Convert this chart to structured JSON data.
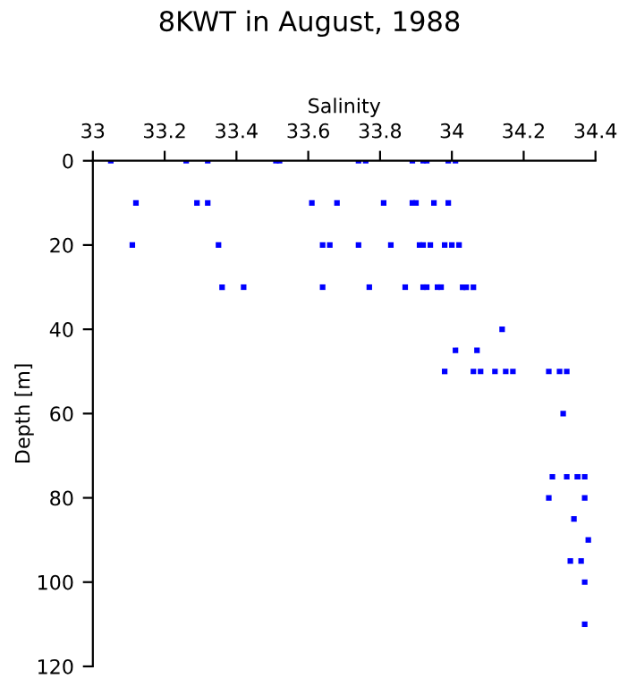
{
  "chart_data": {
    "type": "scatter",
    "title": "8KWT in August, 1988",
    "xlabel": "Salinity",
    "ylabel": "Depth [m]",
    "series": [
      {
        "color": "#0000ff",
        "x": [
          33.05,
          33.26,
          33.32,
          33.51,
          33.52,
          33.74,
          33.76,
          33.89,
          33.92,
          33.93,
          33.99,
          34.01,
          33.12,
          33.29,
          33.32,
          33.61,
          33.68,
          33.81,
          33.89,
          33.9,
          33.95,
          33.99,
          33.11,
          33.35,
          33.64,
          33.66,
          33.74,
          33.83,
          33.91,
          33.92,
          33.94,
          33.98,
          34.0,
          34.02,
          33.36,
          33.42,
          33.64,
          33.77,
          33.87,
          33.92,
          33.93,
          33.96,
          33.97,
          34.03,
          34.04,
          34.06,
          34.14,
          34.01,
          34.07,
          33.98,
          34.06,
          34.08,
          34.12,
          34.15,
          34.17,
          34.27,
          34.3,
          34.32,
          34.31,
          34.28,
          34.32,
          34.35,
          34.35,
          34.37,
          34.27,
          34.37,
          34.34,
          34.38,
          34.33,
          34.36,
          34.37,
          34.37
        ],
        "values": [
          0,
          0,
          0,
          0,
          0,
          0,
          0,
          0,
          0,
          0,
          0,
          0,
          10,
          10,
          10,
          10,
          10,
          10,
          10,
          10,
          10,
          10,
          20,
          20,
          20,
          20,
          20,
          20,
          20,
          20,
          20,
          20,
          20,
          20,
          30,
          30,
          30,
          30,
          30,
          30,
          30,
          30,
          30,
          30,
          30,
          30,
          40,
          45,
          45,
          50,
          50,
          50,
          50,
          50,
          50,
          50,
          50,
          50,
          60,
          75,
          75,
          75,
          75,
          75,
          80,
          80,
          85,
          90,
          95,
          95,
          100,
          110
        ]
      }
    ],
    "xlim": [
      33,
      34.4
    ],
    "xticks": [
      33,
      33.2,
      33.4,
      33.6,
      33.8,
      34,
      34.2,
      34.4
    ],
    "ylim": [
      120,
      0
    ],
    "yticks": [
      0,
      20,
      40,
      60,
      80,
      100,
      120
    ],
    "marker": "square",
    "grid": false,
    "legend": false
  }
}
